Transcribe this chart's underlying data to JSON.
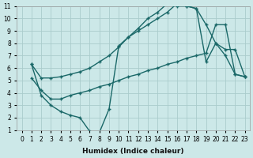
{
  "xlabel": "Humidex (Indice chaleur)",
  "xlim": [
    -0.5,
    23.5
  ],
  "ylim": [
    1,
    11
  ],
  "bg_color": "#cce8e8",
  "grid_color": "#aacccc",
  "line_color": "#1a6868",
  "line1_x": [
    1,
    2,
    3,
    4,
    5,
    6,
    7,
    8,
    9,
    10,
    11,
    12,
    13,
    14,
    15,
    16,
    17,
    18,
    19,
    20,
    21,
    22,
    23
  ],
  "line1_y": [
    6.3,
    5.2,
    5.2,
    5.3,
    5.5,
    5.7,
    6.0,
    6.5,
    7.0,
    7.7,
    8.5,
    9.2,
    10.0,
    10.5,
    11.2,
    11.0,
    11.0,
    10.8,
    9.5,
    8.0,
    7.0,
    5.5,
    5.3
  ],
  "line2_x": [
    1,
    2,
    3,
    4,
    5,
    6,
    7,
    8,
    9,
    10,
    11,
    12,
    13,
    14,
    15,
    16,
    17,
    18,
    19,
    20,
    21,
    22,
    23
  ],
  "line2_y": [
    5.2,
    4.2,
    3.5,
    3.5,
    3.8,
    4.0,
    4.2,
    4.5,
    4.7,
    5.0,
    5.3,
    5.5,
    5.8,
    6.0,
    6.3,
    6.5,
    6.8,
    7.0,
    7.2,
    9.5,
    9.5,
    5.5,
    5.3
  ],
  "line3_x": [
    1,
    2,
    3,
    4,
    5,
    6,
    7,
    8,
    9,
    10,
    11,
    12,
    13,
    14,
    15,
    16,
    17,
    18,
    19,
    20,
    21,
    22,
    23
  ],
  "line3_y": [
    6.3,
    3.8,
    3.0,
    2.5,
    2.2,
    2.0,
    0.9,
    0.8,
    2.7,
    7.8,
    8.5,
    9.0,
    9.5,
    10.0,
    10.5,
    11.2,
    11.0,
    10.8,
    6.5,
    8.0,
    7.5,
    7.5,
    5.3
  ],
  "yticks": [
    1,
    2,
    3,
    4,
    5,
    6,
    7,
    8,
    9,
    10,
    11
  ],
  "xticks": [
    0,
    1,
    2,
    3,
    4,
    5,
    6,
    7,
    8,
    9,
    10,
    11,
    12,
    13,
    14,
    15,
    16,
    17,
    18,
    19,
    20,
    21,
    22,
    23
  ]
}
